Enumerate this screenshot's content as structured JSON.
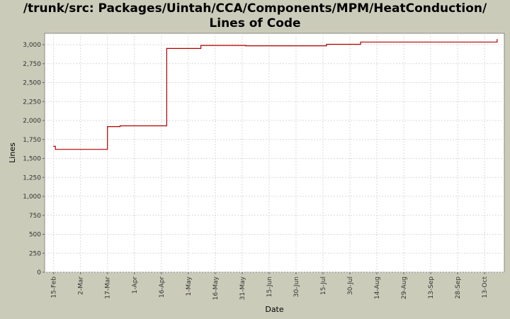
{
  "chart_data": {
    "type": "line",
    "title_line1": "/trunk/src: Packages/Uintah/CCA/Components/MPM/HeatConduction/",
    "title_line2": "Lines of Code",
    "xlabel": "Date",
    "ylabel": "Lines",
    "ylim": [
      0,
      3150
    ],
    "yticks": [
      0,
      250,
      500,
      750,
      1000,
      1250,
      1500,
      1750,
      2000,
      2250,
      2500,
      2750,
      3000
    ],
    "ytick_labels": [
      "0",
      "250",
      "500",
      "750",
      "1,000",
      "1,250",
      "1,500",
      "1,750",
      "2,000",
      "2,250",
      "2,500",
      "2,750",
      "3,000"
    ],
    "xlim": [
      "2007-02-10",
      "2007-10-24"
    ],
    "xticks": [
      "2007-02-15",
      "2007-03-02",
      "2007-03-17",
      "2007-04-01",
      "2007-04-16",
      "2007-05-01",
      "2007-05-16",
      "2007-05-31",
      "2007-06-15",
      "2007-06-30",
      "2007-07-15",
      "2007-07-30",
      "2007-08-14",
      "2007-08-29",
      "2007-09-13",
      "2007-09-28",
      "2007-10-13"
    ],
    "xtick_labels": [
      "15-Feb",
      "2-Mar",
      "17-Mar",
      "1-Apr",
      "16-Apr",
      "1-May",
      "16-May",
      "31-May",
      "15-Jun",
      "30-Jun",
      "15-Jul",
      "30-Jul",
      "14-Aug",
      "29-Aug",
      "13-Sep",
      "28-Sep",
      "13-Oct"
    ],
    "grid": true,
    "line_color": "#b00000",
    "step": true,
    "series": [
      {
        "x": [
          "2007-02-15",
          "2007-02-16",
          "2007-03-17",
          "2007-03-24",
          "2007-04-19",
          "2007-05-08",
          "2007-06-02",
          "2007-07-17",
          "2007-08-05",
          "2007-10-20"
        ],
        "values": [
          1660,
          1620,
          1920,
          1930,
          2950,
          2990,
          2985,
          3005,
          3035,
          3070
        ]
      }
    ]
  }
}
